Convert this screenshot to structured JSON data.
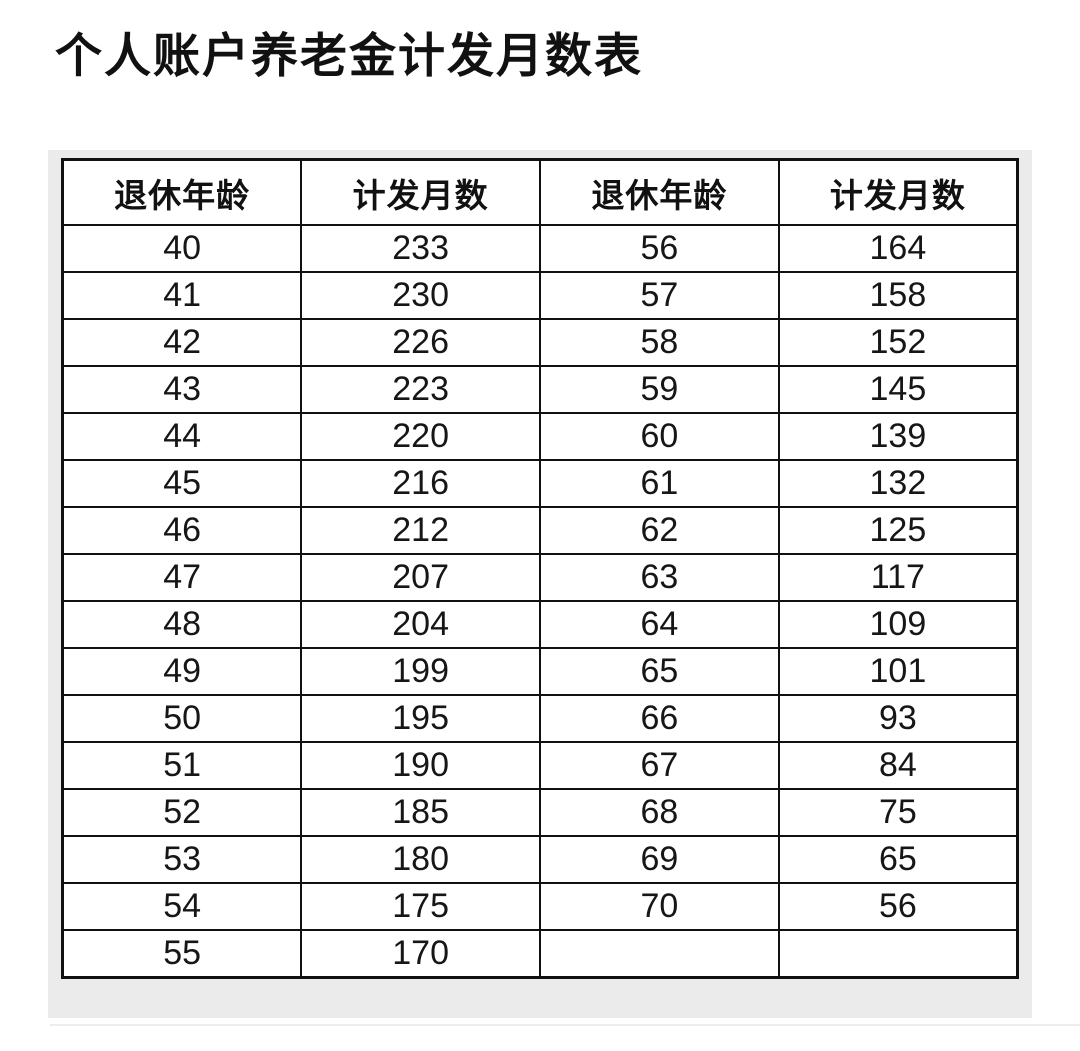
{
  "page": {
    "title": "个人账户养老金计发月数表"
  },
  "table": {
    "headers": [
      "退休年龄",
      "计发月数",
      "退休年龄",
      "计发月数"
    ],
    "rows": [
      [
        "40",
        "233",
        "56",
        "164"
      ],
      [
        "41",
        "230",
        "57",
        "158"
      ],
      [
        "42",
        "226",
        "58",
        "152"
      ],
      [
        "43",
        "223",
        "59",
        "145"
      ],
      [
        "44",
        "220",
        "60",
        "139"
      ],
      [
        "45",
        "216",
        "61",
        "132"
      ],
      [
        "46",
        "212",
        "62",
        "125"
      ],
      [
        "47",
        "207",
        "63",
        "117"
      ],
      [
        "48",
        "204",
        "64",
        "109"
      ],
      [
        "49",
        "199",
        "65",
        "101"
      ],
      [
        "50",
        "195",
        "66",
        "93"
      ],
      [
        "51",
        "190",
        "67",
        "84"
      ],
      [
        "52",
        "185",
        "68",
        "75"
      ],
      [
        "53",
        "180",
        "69",
        "65"
      ],
      [
        "54",
        "175",
        "70",
        "56"
      ],
      [
        "55",
        "170",
        "",
        ""
      ]
    ]
  },
  "colors": {
    "page_bg": "#ffffff",
    "card_bg": "#ebebeb",
    "border": "#111111",
    "text": "#141414"
  }
}
